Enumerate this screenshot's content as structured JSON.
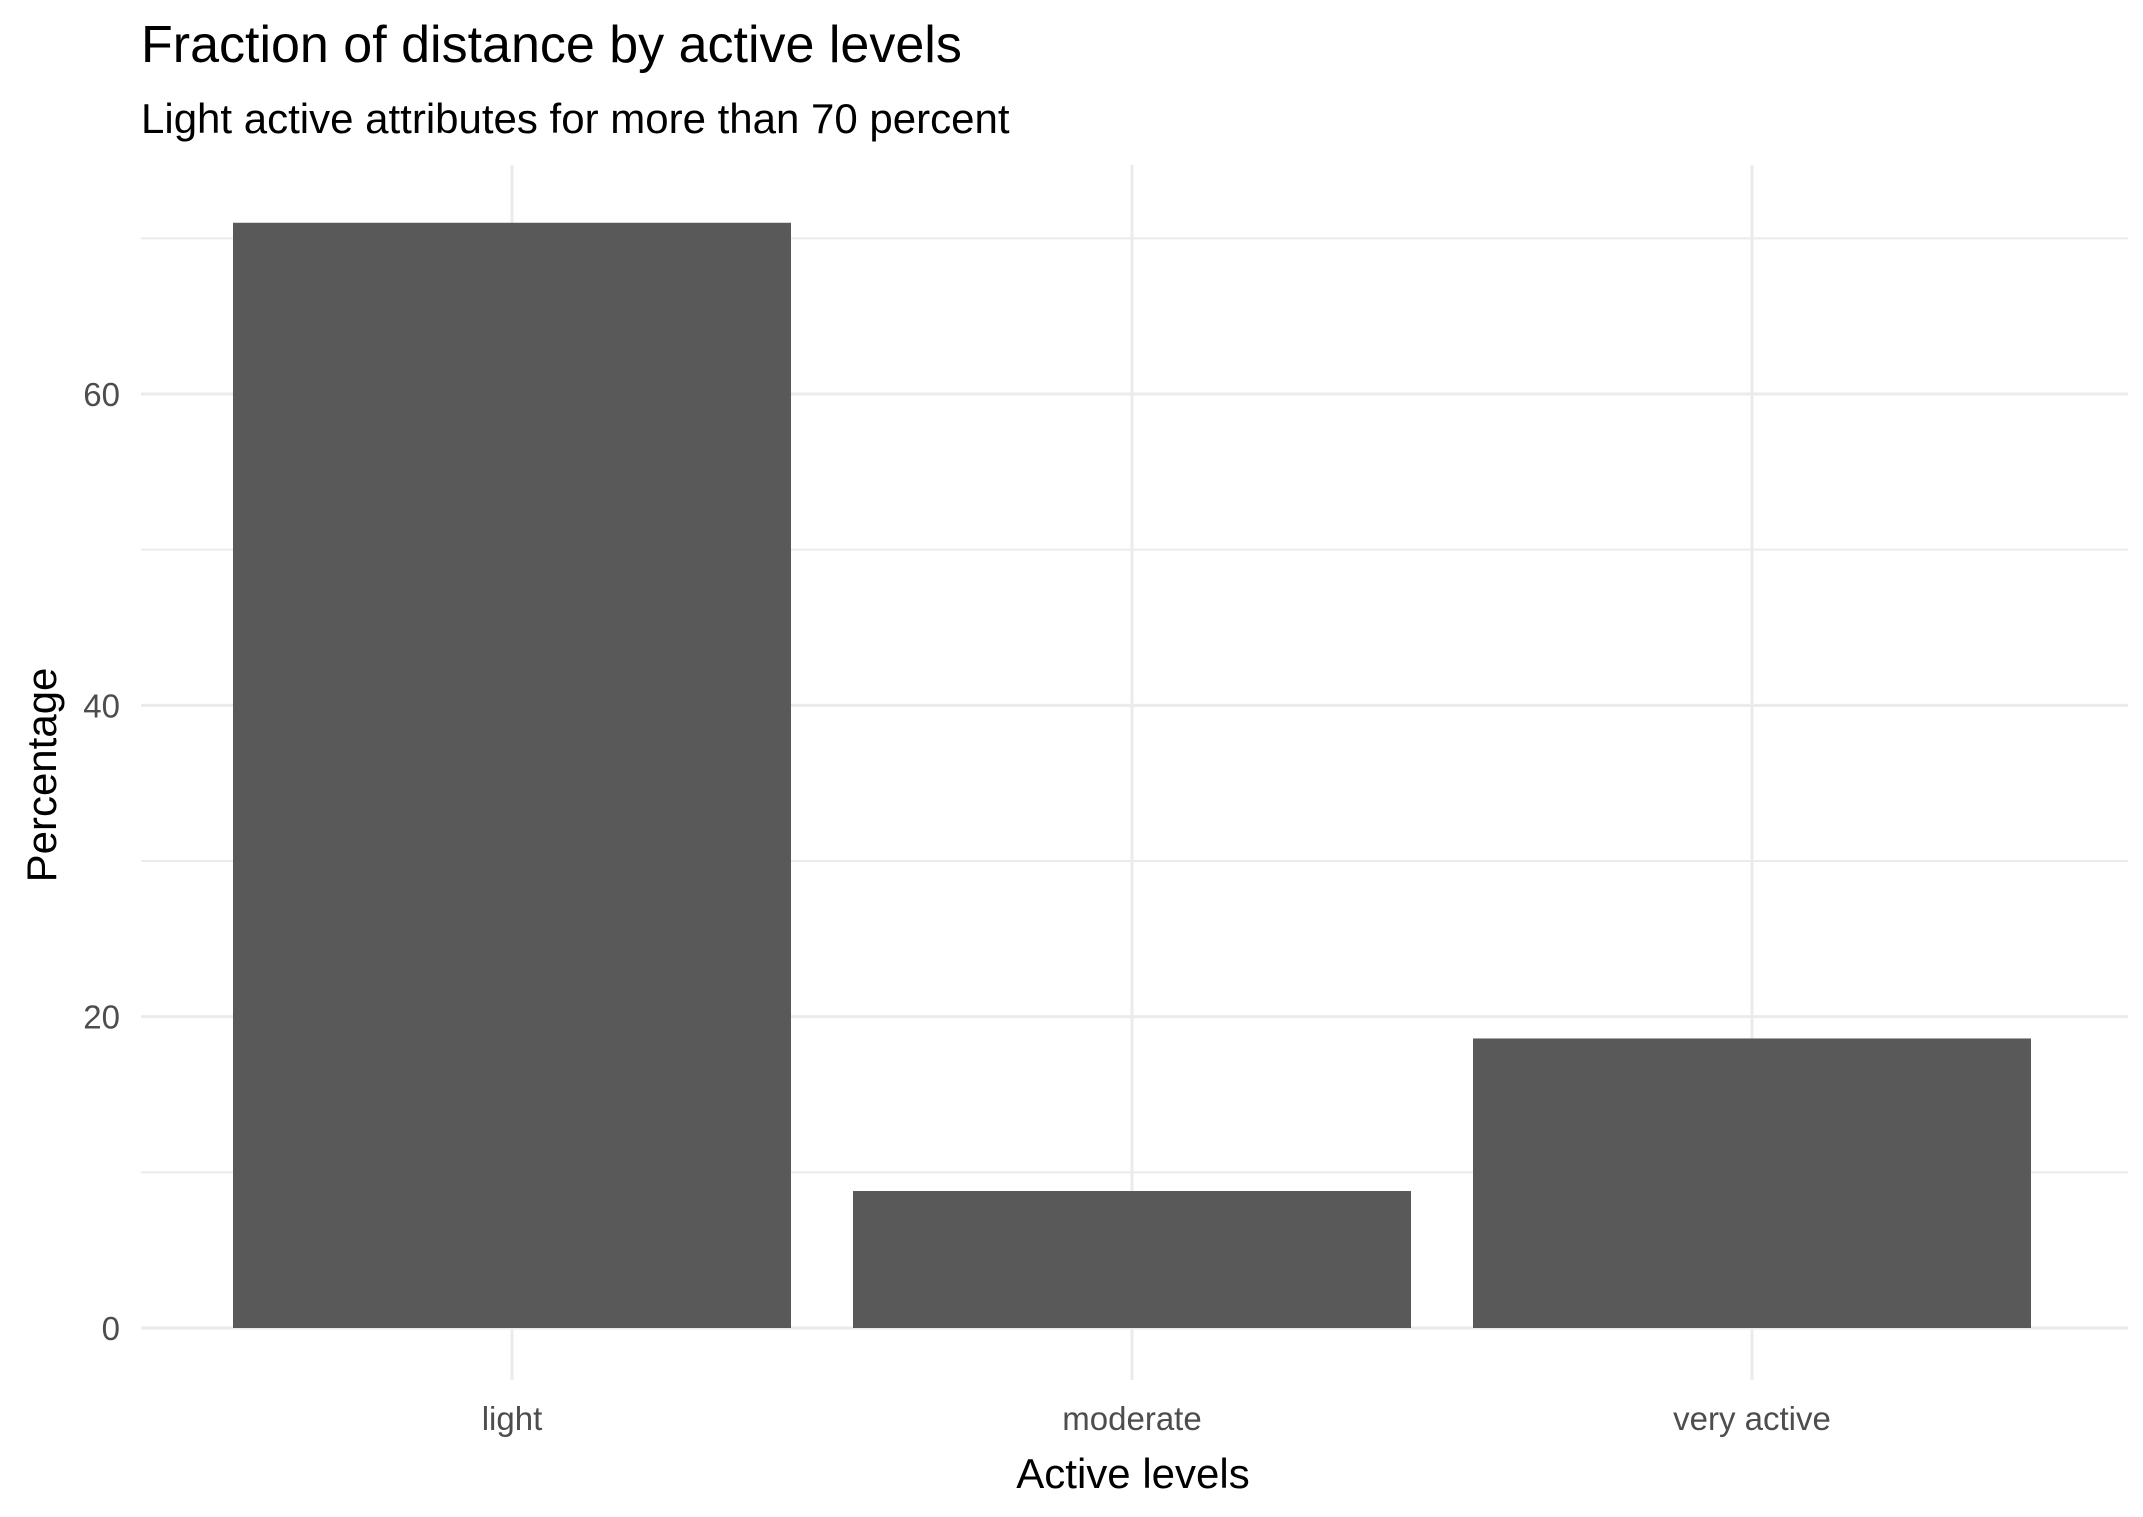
{
  "chart_data": {
    "type": "bar",
    "title": "Fraction of distance by active levels",
    "subtitle": "Light active attributes for more than 70 percent",
    "xlabel": "Active levels",
    "ylabel": "Percentage",
    "categories": [
      "light",
      "moderate",
      "very active"
    ],
    "values": [
      71.0,
      8.8,
      18.6
    ],
    "ylim": [
      0,
      72.5
    ],
    "yticks": [
      0,
      20,
      40,
      60
    ],
    "yticks_minor": [
      10,
      30,
      50,
      70
    ],
    "grid": true,
    "bar_color": "#595959",
    "grid_color": "#ebebeb"
  }
}
